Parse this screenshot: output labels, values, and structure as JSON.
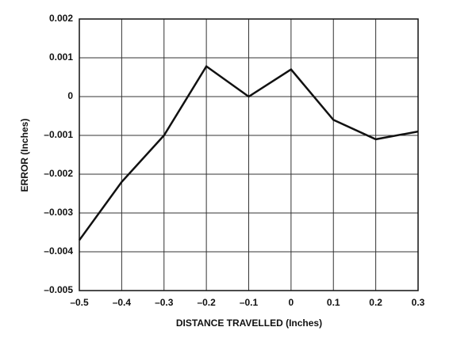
{
  "chart_data": {
    "type": "line",
    "x_label": "DISTANCE TRAVELLED (Inches)",
    "y_label": "ERROR (Inches)",
    "x": [
      -0.5,
      -0.4,
      -0.3,
      -0.2,
      -0.1,
      0,
      0.1,
      0.2,
      0.3
    ],
    "series": [
      {
        "color": "#111111",
        "values": [
          -0.0037,
          -0.0022,
          -0.001,
          0.00078,
          0.0,
          0.0007,
          -0.0006,
          -0.0011,
          -0.0009
        ]
      }
    ],
    "xlim": [
      -0.5,
      0.3
    ],
    "xticks": [
      {
        "value": -0.5,
        "label": "–0.5"
      },
      {
        "value": -0.4,
        "label": "–0.4"
      },
      {
        "value": -0.3,
        "label": "–0.3"
      },
      {
        "value": -0.2,
        "label": "–0.2"
      },
      {
        "value": -0.1,
        "label": "–0.1"
      },
      0,
      0.1,
      0.2,
      0.3
    ],
    "ylim": [
      -0.005,
      0.002
    ],
    "yticks": [
      {
        "value": -0.005,
        "label": "–0.005"
      },
      {
        "value": -0.004,
        "label": "–0.004"
      },
      {
        "value": -0.003,
        "label": "–0.003"
      },
      {
        "value": -0.002,
        "label": "–0.002"
      },
      {
        "value": -0.001,
        "label": "–0.001"
      },
      0,
      0.001,
      0.002
    ],
    "grid": true
  }
}
